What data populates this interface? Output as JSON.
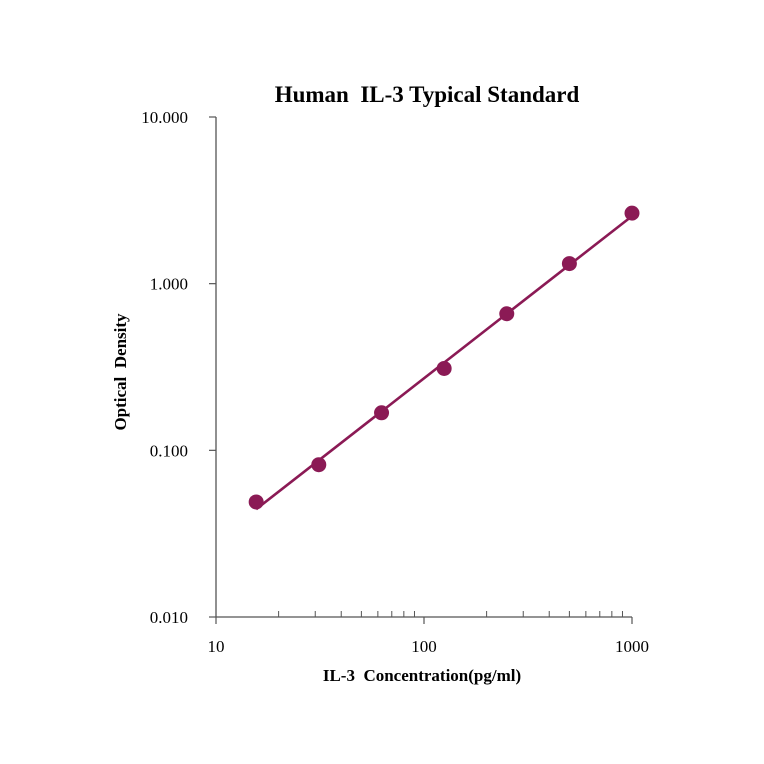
{
  "chart_data": {
    "type": "scatter",
    "title": "Human  IL-3 Typical Standard",
    "xlabel": "IL-3  Concentration(pg/ml)",
    "ylabel": "Optical  Density",
    "x_scale": "log",
    "y_scale": "log",
    "xlim": [
      10,
      1000
    ],
    "ylim": [
      0.01,
      10
    ],
    "x_ticks": [
      {
        "value": 10,
        "label": "10"
      },
      {
        "value": 100,
        "label": "100"
      },
      {
        "value": 1000,
        "label": "1000"
      }
    ],
    "y_ticks": [
      {
        "value": 0.01,
        "label": "0.010"
      },
      {
        "value": 0.1,
        "label": "0.100"
      },
      {
        "value": 1,
        "label": "1.000"
      },
      {
        "value": 10,
        "label": "10.000"
      }
    ],
    "grid": false,
    "legend": "none",
    "series": [
      {
        "x": [
          15.6,
          31.2,
          62.5,
          125,
          250,
          500,
          1000
        ],
        "y": [
          0.049,
          0.082,
          0.168,
          0.31,
          0.66,
          1.32,
          2.65
        ],
        "color": "#8b1a55",
        "marker": "circle",
        "trendline": true
      }
    ]
  }
}
